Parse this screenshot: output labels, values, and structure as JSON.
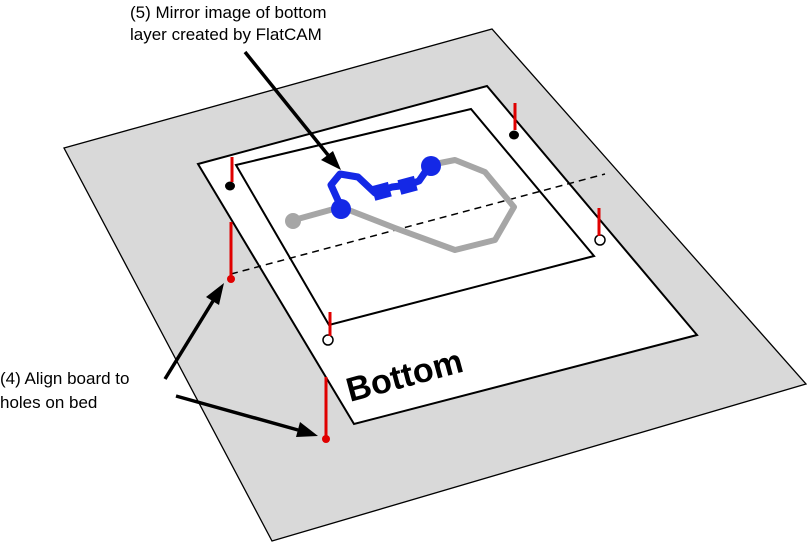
{
  "callouts": {
    "mirror": {
      "line1": "(5) Mirror image of bottom",
      "line2": "layer created by FlatCAM"
    },
    "align": {
      "line1": "(4) Align board to",
      "line2": "holes on bed"
    }
  },
  "board": {
    "label": "Bottom"
  },
  "colors": {
    "bed": "#d9d9d9",
    "paper": "#ffffff",
    "outline": "#000000",
    "pins": "#e00000",
    "mirror_traces": "#1428e6",
    "original_traces": "#a6a6a6"
  }
}
